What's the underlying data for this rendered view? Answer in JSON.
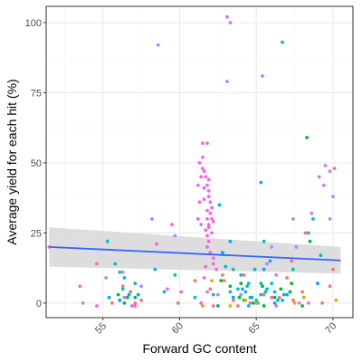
{
  "chart_data": {
    "type": "scatter",
    "xlabel": "Forward GC content",
    "ylabel": "Average yield for each hit (%)",
    "xlim": [
      51.3,
      71.3
    ],
    "ylim": [
      -5.2,
      105.8
    ],
    "x_ticks": [
      55,
      60,
      65,
      70
    ],
    "y_ticks": [
      0,
      25,
      50,
      75,
      100
    ],
    "grid": true,
    "legend": "none",
    "tick_label_angle_x": -45,
    "colors": {
      "panel_border": "#333333",
      "grid_major": "#ebebeb",
      "grid_minor": "#f5f5f5",
      "trend_line": "#3366ff",
      "confidence_band": "#d9d9d9",
      "point_palette": [
        "#f8766d",
        "#00ba38",
        "#00bfc4",
        "#c77cff",
        "#f564e3",
        "#e6ab02",
        "#00a9ff"
      ]
    },
    "trend": {
      "method": "linear",
      "x": [
        51.5,
        70.5
      ],
      "y": [
        20.0,
        15.2
      ],
      "ci_lower": [
        13.0,
        10.5
      ],
      "ci_upper": [
        27.0,
        20.0
      ]
    },
    "series": [
      {
        "color": "#f564e3",
        "points": [
          [
            51.5,
            20
          ],
          [
            58.5,
            21
          ],
          [
            59.5,
            28
          ],
          [
            61.2,
            30
          ],
          [
            61.3,
            36
          ],
          [
            61.2,
            42
          ],
          [
            61.4,
            45
          ],
          [
            61.5,
            52
          ],
          [
            61.5,
            57
          ],
          [
            61.8,
            57
          ],
          [
            61.6,
            47
          ],
          [
            61.7,
            45
          ],
          [
            61.8,
            42
          ],
          [
            61.9,
            40
          ],
          [
            61.9,
            38
          ],
          [
            61.6,
            37
          ],
          [
            62.0,
            36
          ],
          [
            62.1,
            34
          ],
          [
            62.0,
            32
          ],
          [
            61.8,
            30
          ],
          [
            61.9,
            28
          ],
          [
            62.2,
            29
          ],
          [
            61.7,
            26
          ],
          [
            61.8,
            24
          ],
          [
            61.9,
            22
          ],
          [
            61.8,
            20
          ],
          [
            62.0,
            18
          ],
          [
            62.2,
            16
          ],
          [
            62.2,
            14
          ],
          [
            61.7,
            13
          ],
          [
            61.6,
            9
          ],
          [
            61.8,
            4
          ],
          [
            61.4,
            0
          ],
          [
            62.2,
            -1
          ],
          [
            62.4,
            12
          ],
          [
            61.9,
            27
          ],
          [
            61.8,
            33
          ],
          [
            61.6,
            41
          ],
          [
            61.9,
            44
          ],
          [
            61.3,
            50
          ],
          [
            61.5,
            48
          ],
          [
            62.1,
            30
          ],
          [
            62.1,
            25
          ],
          [
            56.4,
            2
          ],
          [
            56.9,
            -1
          ],
          [
            57.1,
            0
          ],
          [
            59.2,
            5
          ],
          [
            60.1,
            4
          ],
          [
            64.6,
            0
          ],
          [
            66.0,
            2
          ],
          [
            66.3,
            -1
          ],
          [
            67.3,
            15
          ],
          [
            68.1,
            2
          ],
          [
            68.4,
            0
          ],
          [
            53.5,
            6
          ],
          [
            54.6,
            -1
          ]
        ]
      },
      {
        "color": "#c77cff",
        "points": [
          [
            58.6,
            92
          ],
          [
            63.1,
            102
          ],
          [
            63.3,
            100
          ],
          [
            63.1,
            79
          ],
          [
            65.4,
            81
          ],
          [
            58.2,
            30
          ],
          [
            59.7,
            24
          ],
          [
            61.4,
            28
          ],
          [
            64.0,
            3
          ],
          [
            66.3,
            10
          ],
          [
            67.2,
            4
          ],
          [
            67.4,
            30
          ],
          [
            67.6,
            20
          ],
          [
            68.6,
            32
          ],
          [
            69.1,
            45
          ],
          [
            69.4,
            42
          ],
          [
            69.5,
            49
          ],
          [
            69.8,
            30
          ],
          [
            69.8,
            47
          ],
          [
            70.0,
            38
          ],
          [
            66.0,
            20
          ],
          [
            67.8,
            0
          ],
          [
            56.3,
            11
          ],
          [
            53.7,
            0
          ],
          [
            55.2,
            9
          ],
          [
            57.5,
            6
          ],
          [
            65.7,
            14
          ],
          [
            62.5,
            3
          ]
        ]
      },
      {
        "color": "#00bfc4",
        "points": [
          [
            55.3,
            22
          ],
          [
            55.8,
            14
          ],
          [
            56.1,
            11
          ],
          [
            56.4,
            9
          ],
          [
            56.3,
            5
          ],
          [
            57.1,
            7
          ],
          [
            58.4,
            12
          ],
          [
            59.0,
            4
          ],
          [
            59.7,
            10
          ],
          [
            61.0,
            2
          ],
          [
            62.2,
            3
          ],
          [
            63.0,
            13
          ],
          [
            63.5,
            12
          ],
          [
            63.8,
            5
          ],
          [
            64.3,
            4
          ],
          [
            64.0,
            10
          ],
          [
            64.4,
            6
          ],
          [
            64.5,
            7
          ],
          [
            64.6,
            2
          ],
          [
            64.9,
            12
          ],
          [
            65.0,
            1
          ],
          [
            65.1,
            0
          ],
          [
            65.3,
            3
          ],
          [
            65.6,
            4
          ],
          [
            65.3,
            7
          ],
          [
            65.5,
            22
          ],
          [
            65.7,
            5
          ],
          [
            66.0,
            7
          ],
          [
            66.4,
            1
          ],
          [
            66.2,
            4
          ],
          [
            66.8,
            3
          ],
          [
            67.4,
            12
          ],
          [
            68.4,
            25
          ],
          [
            68.7,
            30
          ],
          [
            69.2,
            17
          ],
          [
            66.7,
            93
          ],
          [
            62.6,
            35
          ],
          [
            64.5,
            -1
          ],
          [
            63.3,
            4
          ]
        ]
      },
      {
        "color": "#00ba38",
        "points": [
          [
            56.0,
            3
          ],
          [
            56.1,
            1
          ],
          [
            56.4,
            0
          ],
          [
            56.6,
            2
          ],
          [
            57.1,
            2
          ],
          [
            62.5,
            -1
          ],
          [
            63.3,
            6
          ],
          [
            63.9,
            2
          ],
          [
            64.2,
            1
          ],
          [
            64.8,
            0
          ],
          [
            65.5,
            -1
          ],
          [
            66.2,
            2
          ],
          [
            67.2,
            4
          ],
          [
            68.0,
            -1
          ],
          [
            68.3,
            59
          ],
          [
            68.5,
            22
          ],
          [
            62.7,
            8
          ],
          [
            64.0,
            7
          ],
          [
            65.4,
            6
          ],
          [
            66.6,
            5
          ],
          [
            67.3,
            7
          ]
        ]
      },
      {
        "color": "#f8766d",
        "points": [
          [
            54.6,
            14
          ],
          [
            55.6,
            0
          ],
          [
            56.3,
            6
          ],
          [
            56.8,
            4
          ],
          [
            57.1,
            -1
          ],
          [
            57.5,
            1
          ],
          [
            59.9,
            0
          ],
          [
            61.0,
            8
          ],
          [
            62.0,
            5
          ],
          [
            62.8,
            10
          ],
          [
            62.9,
            8
          ],
          [
            63.5,
            1
          ],
          [
            64.2,
            10
          ],
          [
            65.5,
            3
          ],
          [
            66.5,
            2
          ],
          [
            67.0,
            9
          ],
          [
            67.4,
            1
          ],
          [
            68.0,
            4
          ],
          [
            68.2,
            25
          ],
          [
            69.3,
            0
          ],
          [
            70.1,
            48
          ],
          [
            70.0,
            12
          ],
          [
            69.8,
            6
          ],
          [
            63.8,
            -1
          ],
          [
            61.5,
            -1
          ]
        ]
      },
      {
        "color": "#e6ab02",
        "points": [
          [
            61.5,
            -1
          ],
          [
            62.1,
            8
          ],
          [
            63.3,
            -1
          ],
          [
            64.3,
            1
          ],
          [
            65.0,
            0
          ],
          [
            67.5,
            0
          ],
          [
            68.1,
            2
          ],
          [
            70.2,
            1
          ]
        ]
      },
      {
        "color": "#00a9ff",
        "points": [
          [
            55.4,
            2
          ],
          [
            56.1,
            1
          ],
          [
            56.7,
            3
          ],
          [
            57.3,
            3
          ],
          [
            62.8,
            18
          ],
          [
            63.3,
            22
          ],
          [
            63.5,
            2
          ],
          [
            64.1,
            5
          ],
          [
            64.7,
            2
          ],
          [
            65.5,
            12
          ],
          [
            66.2,
            0
          ],
          [
            69.0,
            7
          ],
          [
            67.0,
            3
          ],
          [
            65.3,
            43
          ],
          [
            65.9,
            15
          ],
          [
            66.7,
            1
          ]
        ]
      }
    ]
  }
}
